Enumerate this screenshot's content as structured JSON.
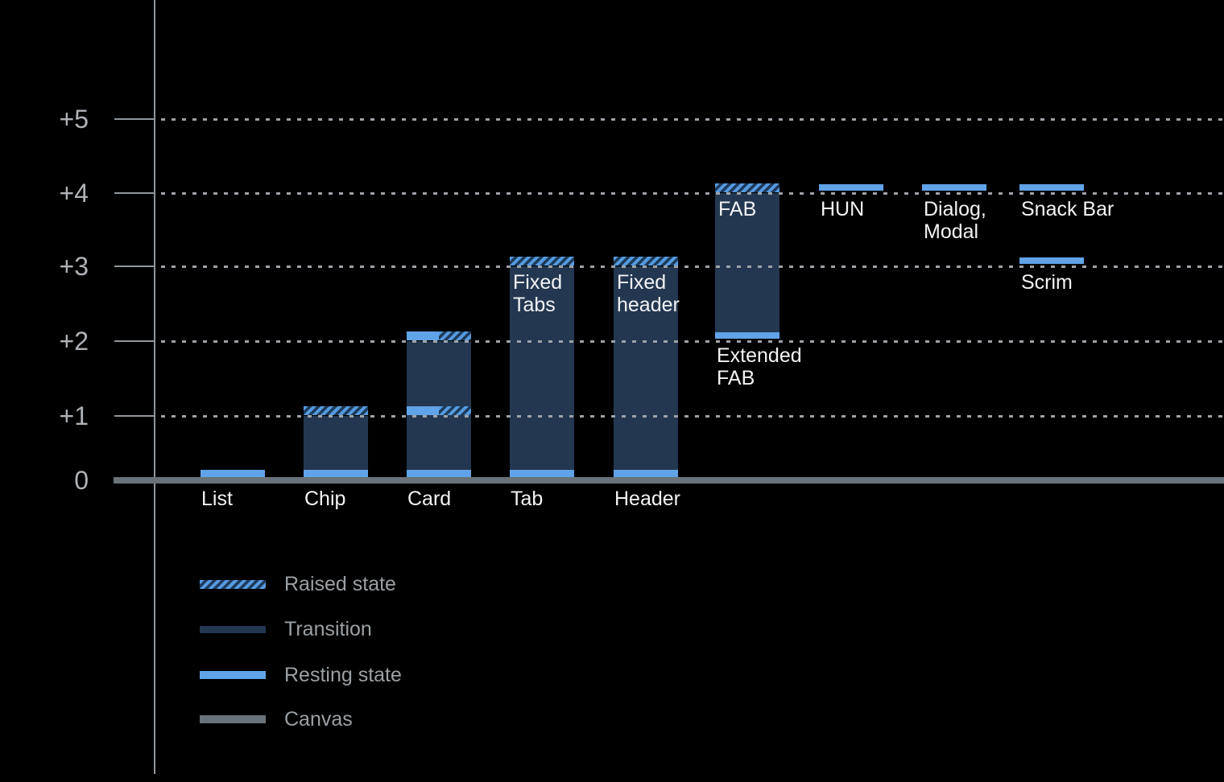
{
  "chart_data": {
    "type": "bar",
    "description": "UI component elevation diagram",
    "y_axis": {
      "tick_labels": [
        "+5",
        "+4",
        "+3",
        "+2",
        "+1",
        "0"
      ],
      "tick_values": [
        5,
        4,
        3,
        2,
        1,
        0
      ],
      "ylim": [
        0,
        5
      ],
      "grid": "dotted-horizontal"
    },
    "items": [
      {
        "category_label": "List",
        "resting": 0
      },
      {
        "category_label": "Chip",
        "resting": 0,
        "transition_from": 0,
        "transition_to": 1,
        "raised": 1
      },
      {
        "category_label": "Card",
        "resting": 0,
        "transition_from": 0,
        "transition_to": 2,
        "split_bands": [
          2,
          1
        ]
      },
      {
        "category_label": "Tab",
        "bar_label": [
          "Fixed",
          "Tabs"
        ],
        "resting": 0,
        "transition_from": 0,
        "transition_to": 3,
        "raised": 3
      },
      {
        "category_label": "Header",
        "bar_label": [
          "Fixed",
          "header"
        ],
        "resting": 0,
        "transition_from": 0,
        "transition_to": 3,
        "raised": 3
      },
      {
        "bar_label": [
          "FAB"
        ],
        "below_label": [
          "Extended",
          "FAB"
        ],
        "resting": 2,
        "transition_from": 2,
        "transition_to": 4,
        "raised": 4
      },
      {
        "below_label": [
          "HUN"
        ],
        "resting": 4
      },
      {
        "below_label": [
          "Dialog,",
          "Modal"
        ],
        "resting": 4
      },
      {
        "below_label": [
          "Snack Bar"
        ],
        "resting": 4
      },
      {
        "below_label": [
          "Scrim"
        ],
        "resting": 3
      }
    ],
    "legend": {
      "position": "bottom-left",
      "entries": [
        {
          "label": "Raised state",
          "style": "hatched"
        },
        {
          "label": "Transition",
          "style": "solid-dark"
        },
        {
          "label": "Resting state",
          "style": "solid-blue"
        },
        {
          "label": "Canvas",
          "style": "solid-gray"
        }
      ]
    }
  },
  "colors": {
    "background": "#000000",
    "resting": "#60A3E8",
    "transition": "#233750",
    "hatch_stripe": "#559ADF",
    "hatch_bg": "#1D3A5A",
    "canvas": "#6A737A",
    "gridline": "#9DA2A8",
    "axis": "#8F969C",
    "tick_label": "#AEB2B6",
    "category_label": "#F2F3F5",
    "bar_label": "#F2F3F5",
    "legend_text": "#9BA0A4"
  }
}
